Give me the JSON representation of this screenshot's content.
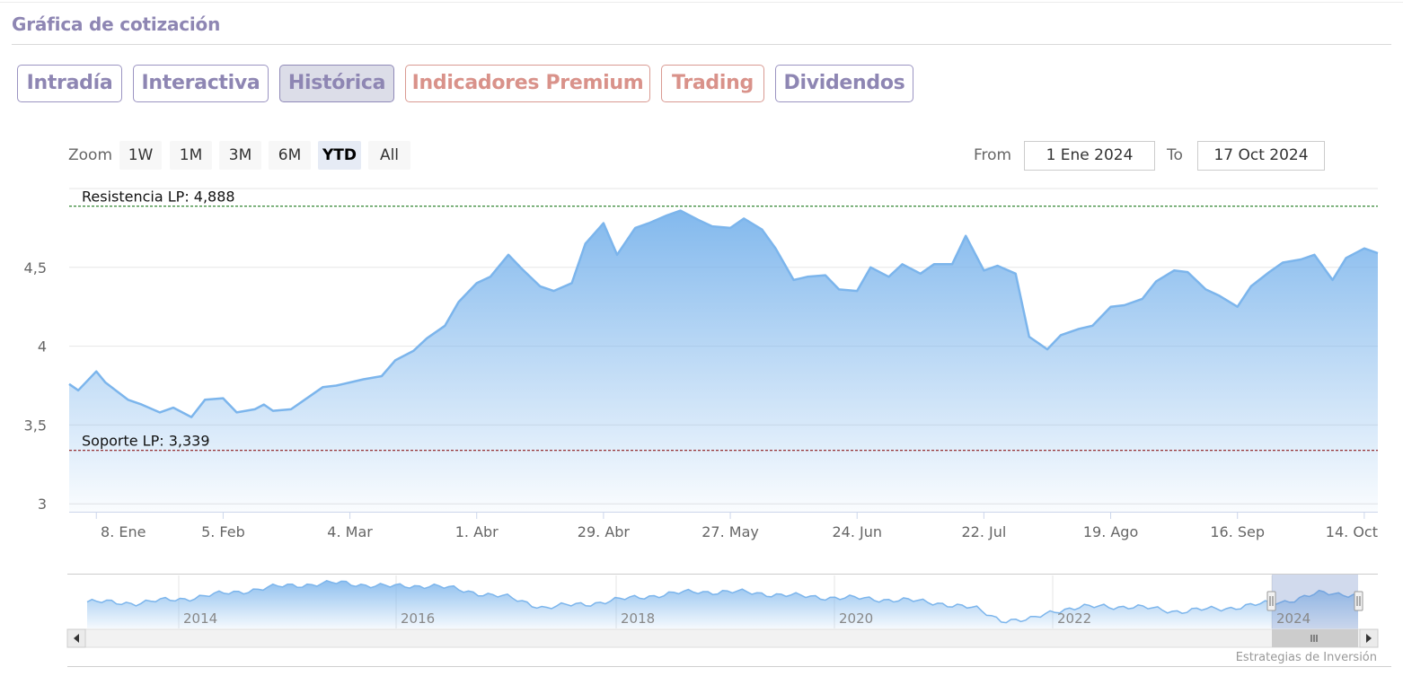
{
  "header": {
    "title": "Gráfica de cotización"
  },
  "tabs": [
    {
      "label": "Intradía",
      "active": false,
      "style": "normal"
    },
    {
      "label": "Interactiva",
      "active": false,
      "style": "normal"
    },
    {
      "label": "Histórica",
      "active": true,
      "style": "normal"
    },
    {
      "label": "Indicadores Premium",
      "active": false,
      "style": "warm"
    },
    {
      "label": "Trading",
      "active": false,
      "style": "warm"
    },
    {
      "label": "Dividendos",
      "active": false,
      "style": "normal"
    }
  ],
  "zoom": {
    "label": "Zoom",
    "buttons": [
      "1W",
      "1M",
      "3M",
      "6M",
      "YTD",
      "All"
    ],
    "selected": "YTD"
  },
  "range": {
    "from_label": "From",
    "from_value": "1 Ene 2024",
    "to_label": "To",
    "to_value": "17 Oct 2024"
  },
  "colors": {
    "series": "#7cb5ec",
    "resistance": "#1e7a1e",
    "support": "#8b1a1a",
    "tab_text": "#8e86b3",
    "tab_warm": "#d9928a"
  },
  "chart_data": {
    "type": "area",
    "x_start": "2024-01-02",
    "x_end": "2024-10-17",
    "ylim": [
      2.95,
      5.0
    ],
    "yticks": [
      3,
      3.5,
      4,
      4.5
    ],
    "ytick_labels": [
      "3",
      "3,5",
      "4",
      "4,5"
    ],
    "xtick_labels": [
      "8. Ene",
      "5. Feb",
      "4. Mar",
      "1. Abr",
      "29. Abr",
      "27. May",
      "24. Jun",
      "22. Jul",
      "19. Ago",
      "16. Sep",
      "14. Oct"
    ],
    "xtick_dates": [
      "2024-01-08",
      "2024-02-05",
      "2024-03-04",
      "2024-04-01",
      "2024-04-29",
      "2024-05-27",
      "2024-06-24",
      "2024-07-22",
      "2024-08-19",
      "2024-09-16",
      "2024-10-14"
    ],
    "grid": true,
    "legend": "none",
    "annotations": [
      {
        "label": "Resistencia LP: 4,888",
        "value": 4.888,
        "style": "dashed-green"
      },
      {
        "label": "Soporte LP: 3,339",
        "value": 3.339,
        "style": "dashed-red"
      }
    ],
    "series": [
      {
        "x": [
          "2024-01-02",
          "2024-01-04",
          "2024-01-08",
          "2024-01-10",
          "2024-01-15",
          "2024-01-18",
          "2024-01-22",
          "2024-01-25",
          "2024-01-29",
          "2024-02-01",
          "2024-02-05",
          "2024-02-08",
          "2024-02-12",
          "2024-02-14",
          "2024-02-16",
          "2024-02-20",
          "2024-02-23",
          "2024-02-27",
          "2024-03-01",
          "2024-03-04",
          "2024-03-07",
          "2024-03-11",
          "2024-03-14",
          "2024-03-18",
          "2024-03-21",
          "2024-03-25",
          "2024-03-28",
          "2024-04-01",
          "2024-04-04",
          "2024-04-08",
          "2024-04-11",
          "2024-04-15",
          "2024-04-18",
          "2024-04-22",
          "2024-04-25",
          "2024-04-29",
          "2024-05-02",
          "2024-05-06",
          "2024-05-09",
          "2024-05-13",
          "2024-05-16",
          "2024-05-20",
          "2024-05-23",
          "2024-05-27",
          "2024-05-30",
          "2024-06-03",
          "2024-06-06",
          "2024-06-10",
          "2024-06-13",
          "2024-06-17",
          "2024-06-20",
          "2024-06-24",
          "2024-06-27",
          "2024-07-01",
          "2024-07-04",
          "2024-07-08",
          "2024-07-11",
          "2024-07-15",
          "2024-07-18",
          "2024-07-22",
          "2024-07-25",
          "2024-07-29",
          "2024-08-01",
          "2024-08-05",
          "2024-08-08",
          "2024-08-12",
          "2024-08-15",
          "2024-08-19",
          "2024-08-22",
          "2024-08-26",
          "2024-08-29",
          "2024-09-02",
          "2024-09-05",
          "2024-09-09",
          "2024-09-12",
          "2024-09-16",
          "2024-09-19",
          "2024-09-23",
          "2024-09-26",
          "2024-09-30",
          "2024-10-03",
          "2024-10-07",
          "2024-10-10",
          "2024-10-14",
          "2024-10-17"
        ],
        "values": [
          3.76,
          3.72,
          3.84,
          3.77,
          3.66,
          3.63,
          3.58,
          3.61,
          3.55,
          3.66,
          3.67,
          3.58,
          3.6,
          3.63,
          3.59,
          3.6,
          3.66,
          3.74,
          3.75,
          3.77,
          3.79,
          3.81,
          3.91,
          3.97,
          4.05,
          4.13,
          4.28,
          4.4,
          4.44,
          4.58,
          4.49,
          4.38,
          4.35,
          4.4,
          4.65,
          4.78,
          4.58,
          4.75,
          4.78,
          4.83,
          4.86,
          4.8,
          4.76,
          4.75,
          4.81,
          4.74,
          4.62,
          4.42,
          4.44,
          4.45,
          4.36,
          4.35,
          4.5,
          4.44,
          4.52,
          4.46,
          4.52,
          4.52,
          4.7,
          4.48,
          4.51,
          4.46,
          4.06,
          3.98,
          4.07,
          4.11,
          4.13,
          4.25,
          4.26,
          4.3,
          4.41,
          4.48,
          4.47,
          4.36,
          4.32,
          4.25,
          4.38,
          4.47,
          4.53,
          4.55,
          4.58,
          4.42,
          4.56,
          4.62,
          4.59
        ]
      }
    ],
    "navigator": {
      "x_labels": [
        "2014",
        "2016",
        "2018",
        "2020",
        "2022",
        "2024"
      ]
    }
  },
  "footer": {
    "credit": "Estrategias de Inversión"
  }
}
